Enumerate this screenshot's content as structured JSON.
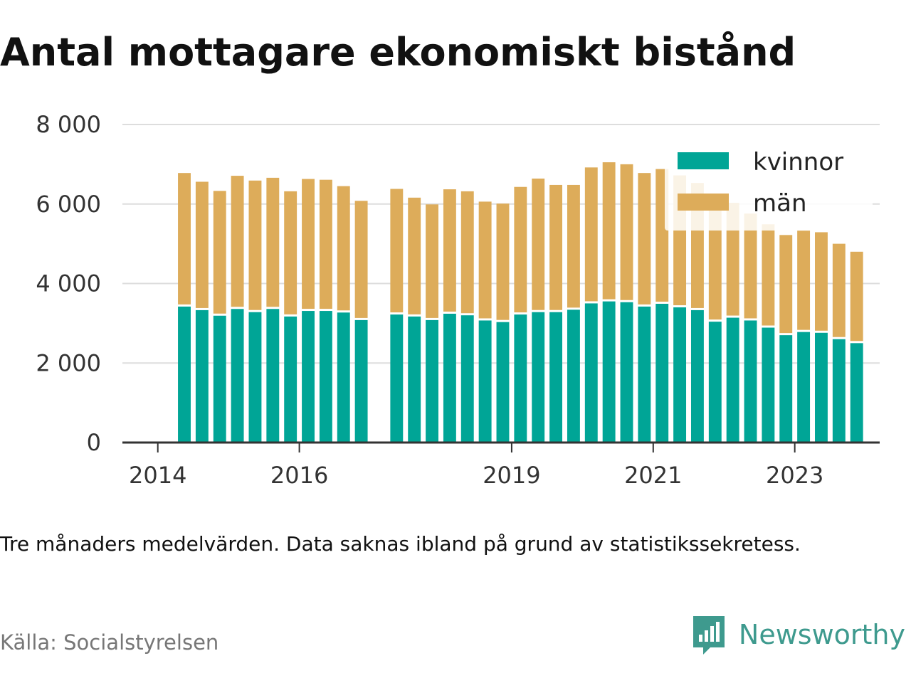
{
  "title": "Antal mottagare ekonomiskt bistånd",
  "note": "Tre månaders medelvärden. Data saknas ibland på grund av statistikssekretess.",
  "source": "Källa: Socialstyrelsen",
  "brand": {
    "name": "Newsworthy",
    "icon": "newsworthy-logo-icon",
    "color": "#3e9a8e"
  },
  "colors": {
    "kvinnor": "#00a596",
    "man": "#ddac5a",
    "grid": "#dddddd",
    "axis": "#333333"
  },
  "chart_data": {
    "type": "bar",
    "stacked": true,
    "x_unit": "quarter",
    "x_tick_labels": [
      "2014",
      "2016",
      "2019",
      "2021",
      "2023"
    ],
    "x_ticks": [
      2014,
      2016,
      2019,
      2021,
      2023
    ],
    "xlim": [
      2013.5,
      2024.2
    ],
    "ylim": [
      0,
      8000
    ],
    "y_ticks": [
      0,
      2000,
      4000,
      6000,
      8000
    ],
    "y_tick_labels": [
      "0",
      "2 000",
      "4 000",
      "6 000",
      "8 000"
    ],
    "grid": true,
    "legend_position": "top-right",
    "series": [
      {
        "name": "kvinnor",
        "color": "#00a596",
        "values": [
          3420,
          3330,
          3190,
          3360,
          3280,
          3360,
          3170,
          3310,
          3310,
          3270,
          3080,
          null,
          3220,
          3170,
          3080,
          3240,
          3200,
          3070,
          3030,
          3220,
          3280,
          3280,
          3340,
          3500,
          3550,
          3530,
          3420,
          3490,
          3400,
          3330,
          3040,
          3140,
          3070,
          2890,
          2700,
          2780,
          2760,
          2600,
          2500
        ]
      },
      {
        "name": "män",
        "color": "#ddac5a",
        "values": [
          3360,
          3230,
          3140,
          3350,
          3310,
          3300,
          3150,
          3320,
          3300,
          3180,
          3000,
          null,
          3160,
          2990,
          2910,
          3130,
          3120,
          2990,
          2980,
          3210,
          3360,
          3200,
          3140,
          3420,
          3500,
          3470,
          3360,
          3390,
          3320,
          3200,
          2970,
          2890,
          2690,
          2600,
          2520,
          2550,
          2530,
          2400,
          2300
        ]
      }
    ],
    "x": [
      2014.375,
      2014.625,
      2014.875,
      2015.125,
      2015.375,
      2015.625,
      2015.875,
      2016.125,
      2016.375,
      2016.625,
      2016.875,
      2017.125,
      2017.375,
      2017.625,
      2017.875,
      2018.125,
      2018.375,
      2018.625,
      2018.875,
      2019.125,
      2019.375,
      2019.625,
      2019.875,
      2020.125,
      2020.375,
      2020.625,
      2020.875,
      2021.125,
      2021.375,
      2021.625,
      2021.875,
      2022.125,
      2022.375,
      2022.625,
      2022.875,
      2023.125,
      2023.375,
      2023.625,
      2023.875
    ]
  }
}
